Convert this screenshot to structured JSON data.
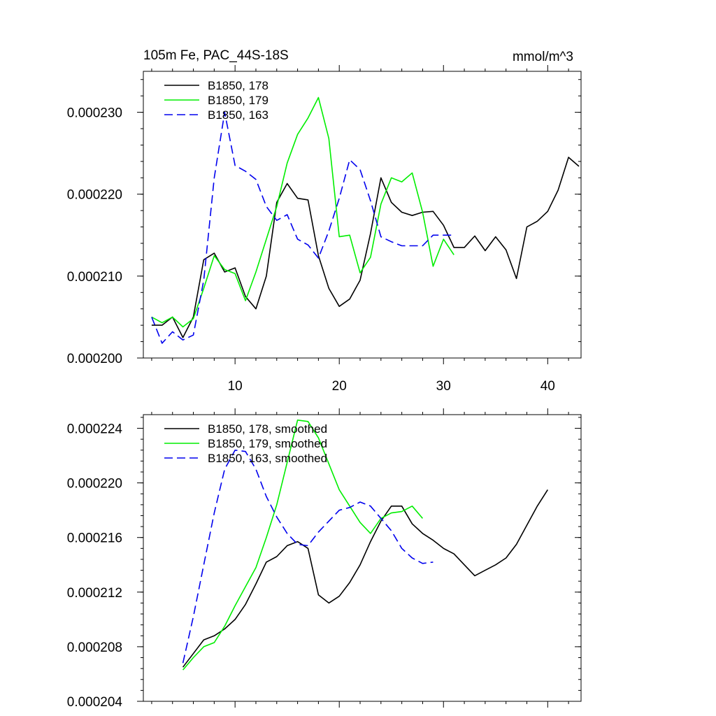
{
  "chart_data": [
    {
      "type": "line",
      "title_left": "105m Fe, PAC_44S-18S",
      "title_right": "mmol/m^3",
      "xlabel": "",
      "ylabel": "",
      "xlim": [
        1.2,
        43.2
      ],
      "ylim": [
        0.0002,
        0.000235
      ],
      "xticks": [
        10,
        20,
        30,
        40
      ],
      "xtick_labels": [
        "10",
        "20",
        "30",
        "40"
      ],
      "yticks": [
        0.0002,
        0.00021,
        0.00022,
        0.00023
      ],
      "ytick_labels": [
        "0.000200",
        "0.000210",
        "0.000220",
        "0.000230"
      ],
      "legend_position": "top-left",
      "series": [
        {
          "name": "B1850, 178",
          "color": "#000000",
          "dash": "solid",
          "x": [
            2,
            3,
            4,
            5,
            6,
            7,
            8,
            9,
            10,
            11,
            12,
            13,
            14,
            15,
            16,
            17,
            18,
            19,
            20,
            21,
            22,
            23,
            24,
            25,
            26,
            27,
            28,
            29,
            30,
            31,
            32,
            33,
            34,
            35,
            36,
            37,
            38,
            39,
            40,
            41,
            42,
            43
          ],
          "y": [
            0.000204,
            0.000204,
            0.000205,
            0.0002025,
            0.000205,
            0.000212,
            0.0002128,
            0.0002105,
            0.000211,
            0.0002075,
            0.000206,
            0.00021,
            0.000219,
            0.0002213,
            0.0002195,
            0.0002193,
            0.0002125,
            0.0002085,
            0.0002063,
            0.0002072,
            0.0002095,
            0.0002152,
            0.000222,
            0.000219,
            0.0002178,
            0.0002174,
            0.0002178,
            0.0002179,
            0.0002162,
            0.0002135,
            0.0002135,
            0.0002149,
            0.0002131,
            0.0002148,
            0.0002132,
            0.0002097,
            0.000216,
            0.0002167,
            0.0002179,
            0.0002205,
            0.0002245,
            0.0002234
          ]
        },
        {
          "name": "B1850, 179",
          "color": "#00ee00",
          "dash": "solid",
          "x": [
            2,
            3,
            4,
            5,
            6,
            7,
            8,
            9,
            10,
            11,
            12,
            13,
            14,
            15,
            16,
            17,
            18,
            19,
            20,
            21,
            22,
            23,
            24,
            25,
            26,
            27,
            28,
            29,
            30,
            31
          ],
          "y": [
            0.000205,
            0.0002043,
            0.000205,
            0.0002038,
            0.0002048,
            0.0002085,
            0.0002125,
            0.0002108,
            0.0002103,
            0.000207,
            0.0002105,
            0.0002145,
            0.0002185,
            0.0002238,
            0.0002273,
            0.0002293,
            0.0002318,
            0.0002268,
            0.0002148,
            0.000215,
            0.0002104,
            0.0002123,
            0.0002188,
            0.000222,
            0.0002215,
            0.0002226,
            0.0002178,
            0.0002112,
            0.0002145,
            0.0002126
          ]
        },
        {
          "name": "B1850, 163",
          "color": "#0000ee",
          "dash": "dashed",
          "x": [
            2,
            3,
            4,
            5,
            6,
            7,
            8,
            9,
            10,
            11,
            12,
            13,
            14,
            15,
            16,
            17,
            18,
            19,
            20,
            21,
            22,
            23,
            24,
            25,
            26,
            27,
            28,
            29,
            30,
            31
          ],
          "y": [
            0.000205,
            0.0002018,
            0.0002032,
            0.0002022,
            0.0002028,
            0.0002095,
            0.000222,
            0.00023,
            0.0002235,
            0.0002228,
            0.0002218,
            0.0002185,
            0.0002168,
            0.0002175,
            0.0002145,
            0.0002138,
            0.0002122,
            0.0002155,
            0.0002195,
            0.0002242,
            0.000223,
            0.0002192,
            0.0002148,
            0.0002142,
            0.0002137,
            0.0002137,
            0.0002137,
            0.000215,
            0.000215,
            0.000215
          ]
        }
      ]
    },
    {
      "type": "line",
      "xlim": [
        1.2,
        43.2
      ],
      "ylim": [
        0.000204,
        0.000225
      ],
      "yticks": [
        0.000204,
        0.000208,
        0.000212,
        0.000216,
        0.00022,
        0.000224
      ],
      "ytick_labels": [
        "0.000204",
        "0.000208",
        "0.000212",
        "0.000216",
        "0.000220",
        "0.000224"
      ],
      "xticks": [
        10,
        20,
        30,
        40
      ],
      "legend_position": "top-left",
      "series": [
        {
          "name": "B1850, 178, smoothed",
          "color": "#000000",
          "dash": "solid",
          "x": [
            5,
            6,
            7,
            8,
            9,
            10,
            11,
            12,
            13,
            14,
            15,
            16,
            17,
            18,
            19,
            20,
            21,
            22,
            23,
            24,
            25,
            26,
            27,
            28,
            29,
            30,
            31,
            32,
            33,
            34,
            35,
            36,
            37,
            38,
            39,
            40
          ],
          "y": [
            0.0002065,
            0.0002075,
            0.0002085,
            0.0002088,
            0.0002093,
            0.00021,
            0.0002111,
            0.0002126,
            0.0002142,
            0.0002146,
            0.0002154,
            0.0002157,
            0.0002152,
            0.0002118,
            0.0002112,
            0.0002117,
            0.0002127,
            0.000214,
            0.0002157,
            0.0002172,
            0.0002183,
            0.0002183,
            0.000217,
            0.0002163,
            0.0002158,
            0.0002152,
            0.0002148,
            0.000214,
            0.0002132,
            0.0002136,
            0.000214,
            0.0002145,
            0.0002155,
            0.0002169,
            0.0002183,
            0.0002195
          ]
        },
        {
          "name": "B1850, 179, smoothed",
          "color": "#00ee00",
          "dash": "solid",
          "x": [
            5,
            6,
            7,
            8,
            9,
            10,
            11,
            12,
            13,
            14,
            15,
            16,
            17,
            18,
            19,
            20,
            21,
            22,
            23,
            24,
            25,
            26,
            27,
            28
          ],
          "y": [
            0.0002063,
            0.0002072,
            0.000208,
            0.0002083,
            0.0002095,
            0.000211,
            0.0002124,
            0.0002138,
            0.000216,
            0.0002184,
            0.0002215,
            0.0002246,
            0.0002245,
            0.0002233,
            0.0002214,
            0.0002195,
            0.0002183,
            0.0002171,
            0.0002163,
            0.0002174,
            0.0002178,
            0.0002179,
            0.0002183,
            0.0002174
          ]
        },
        {
          "name": "B1850, 163, smoothed",
          "color": "#0000ee",
          "dash": "dashed",
          "x": [
            5,
            6,
            7,
            8,
            9,
            10,
            11,
            12,
            13,
            14,
            15,
            16,
            17,
            18,
            19,
            20,
            21,
            22,
            23,
            24,
            25,
            26,
            27,
            28,
            29
          ],
          "y": [
            0.0002068,
            0.0002102,
            0.000214,
            0.0002178,
            0.000221,
            0.0002224,
            0.0002223,
            0.000221,
            0.000219,
            0.0002175,
            0.0002163,
            0.0002155,
            0.0002154,
            0.0002164,
            0.0002172,
            0.000218,
            0.0002182,
            0.0002186,
            0.0002183,
            0.0002174,
            0.0002165,
            0.0002152,
            0.0002145,
            0.0002141,
            0.0002142
          ]
        }
      ]
    }
  ]
}
